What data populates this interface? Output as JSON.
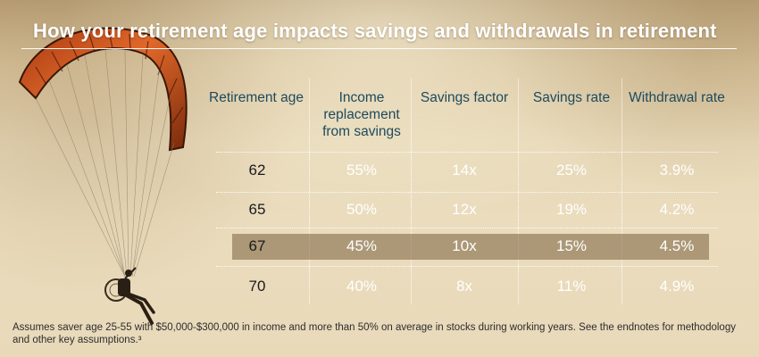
{
  "title": "How your retirement age impacts savings and withdrawals in retirement",
  "table": {
    "headers": {
      "retirement_age": "Retirement age",
      "income_replacement": "Income replacement from savings",
      "savings_factor": "Savings factor",
      "savings_rate": "Savings rate",
      "withdrawal_rate": "Withdrawal rate"
    },
    "rows": [
      {
        "age": "62",
        "income": "55%",
        "factor": "14x",
        "savings": "25%",
        "withdrawal": "3.9%",
        "highlighted": false
      },
      {
        "age": "65",
        "income": "50%",
        "factor": "12x",
        "savings": "19%",
        "withdrawal": "4.2%",
        "highlighted": false
      },
      {
        "age": "67",
        "income": "45%",
        "factor": "10x",
        "savings": "15%",
        "withdrawal": "4.5%",
        "highlighted": true
      },
      {
        "age": "70",
        "income": "40%",
        "factor": "8x",
        "savings": "11%",
        "withdrawal": "4.9%",
        "highlighted": false
      }
    ]
  },
  "footnote": "Assumes saver age 25-55 with $50,000-$300,000 in income and more than 50% on average in stocks during working years. See the endnotes for methodology and other key assumptions.³",
  "colors": {
    "header_text": "#1d4a5e",
    "value_text": "#ffffff",
    "age_text": "#1b1b1b",
    "wing": "#d4571f",
    "highlight_band": "#7a6240"
  },
  "background_image": "paraglider-over-hazy-sky"
}
